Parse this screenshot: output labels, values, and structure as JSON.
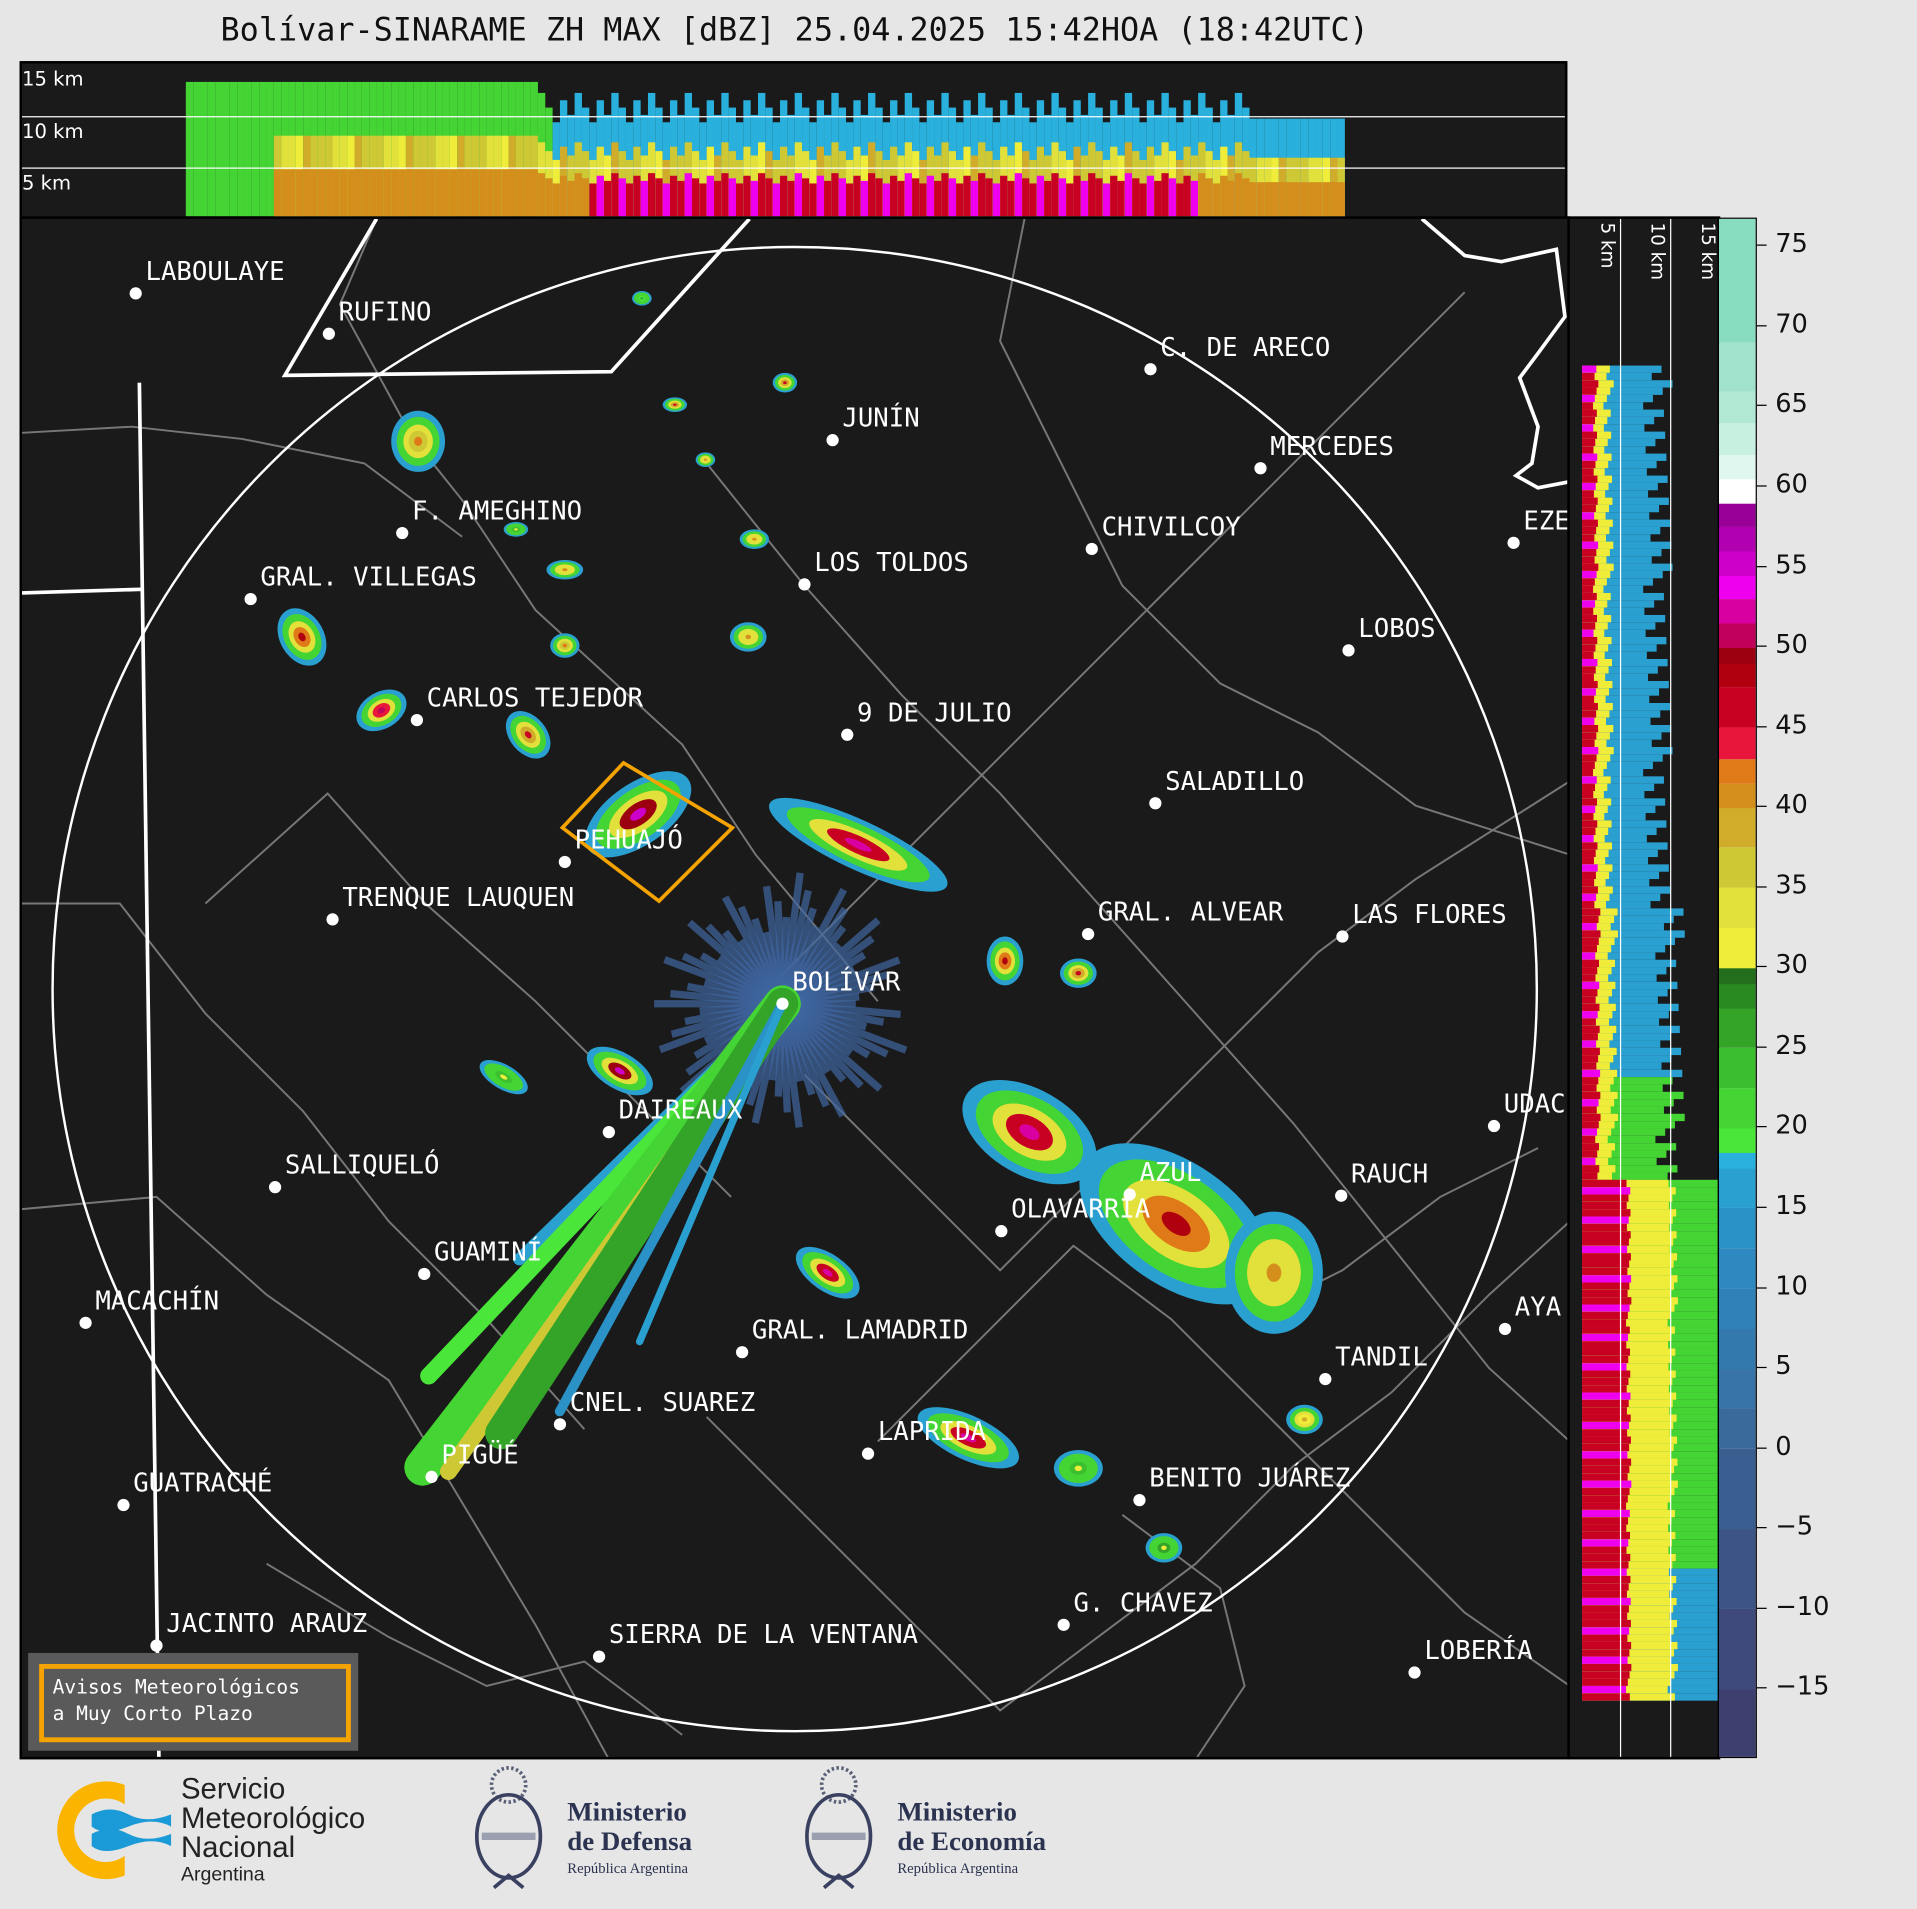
{
  "title": "Bolívar-SINARAME ZH MAX [dBZ] 25.04.2025 15:42HOA (18:42UTC)",
  "top_panel": {
    "height_labels": [
      "15 km",
      "10 km",
      "5 km"
    ]
  },
  "side_panel": {
    "height_labels": [
      "5 km",
      "10 km",
      "15 km"
    ]
  },
  "colorbar": {
    "unit": "dBZ",
    "ticks": [
      "75",
      "70",
      "65",
      "60",
      "55",
      "50",
      "45",
      "40",
      "35",
      "30",
      "25",
      "20",
      "15",
      "10",
      "5",
      "0",
      "−5",
      "−10",
      "−15"
    ],
    "range": [
      -19.4,
      76.7
    ],
    "bands": [
      [
        -20,
        "#3d3f6e"
      ],
      [
        -15,
        "#3e4a7c"
      ],
      [
        -10,
        "#3d5586"
      ],
      [
        -5,
        "#3b5e90"
      ],
      [
        0,
        "#3a6a9c"
      ],
      [
        2.5,
        "#3874a8"
      ],
      [
        5,
        "#3479ae"
      ],
      [
        7.5,
        "#2f81b8"
      ],
      [
        10,
        "#2d89c0"
      ],
      [
        12.5,
        "#2a92c6"
      ],
      [
        15,
        "#2aa0d0"
      ],
      [
        17.5,
        "#29b0dc"
      ],
      [
        18.5,
        "#4ae63a"
      ],
      [
        20,
        "#44d434"
      ],
      [
        22.5,
        "#3cbf2e"
      ],
      [
        25,
        "#33a428"
      ],
      [
        27.5,
        "#2a8a22"
      ],
      [
        29,
        "#226e1c"
      ],
      [
        30,
        "#f0ec3a"
      ],
      [
        32.5,
        "#e2e03a"
      ],
      [
        35,
        "#cfc835"
      ],
      [
        37.5,
        "#d0ac2a"
      ],
      [
        40,
        "#d48e1c"
      ],
      [
        41.5,
        "#e07a18"
      ],
      [
        43,
        "#e8163a"
      ],
      [
        45,
        "#c80022"
      ],
      [
        47.5,
        "#b00010"
      ],
      [
        49,
        "#9c0010"
      ],
      [
        50,
        "#c0005a"
      ],
      [
        51.5,
        "#d800a0"
      ],
      [
        53,
        "#ee00ee"
      ],
      [
        54.5,
        "#cc00c8"
      ],
      [
        56,
        "#b000b0"
      ],
      [
        57.5,
        "#980098"
      ],
      [
        59,
        "#ffffff"
      ],
      [
        60.5,
        "#dff7ee"
      ],
      [
        62,
        "#c8f0e0"
      ],
      [
        64,
        "#b0e8d4"
      ],
      [
        66,
        "#a0e2cc"
      ],
      [
        69,
        "#88dcc0"
      ]
    ]
  },
  "cities": [
    "LABOULAYE",
    "RUFINO",
    "C. DE ARECO",
    "JUNÍN",
    "MERCEDES",
    "F. AMEGHINO",
    "CHIVILCOY",
    "EZE",
    "LOS TOLDOS",
    "GRAL. VILLEGAS",
    "LOBOS",
    "CARLOS TEJEDOR",
    "9 DE JULIO",
    "SALADILLO",
    "PEHUAJÓ",
    "TRENQUE LAUQUEN",
    "GRAL. ALVEAR",
    "LAS FLORES",
    "BOLÍVAR",
    "DAIREAUX",
    "UDAC",
    "SALLIQUELÓ",
    "AZUL",
    "RAUCH",
    "OLAVARRÍA",
    "GUAMINÍ",
    "MACACHÍN",
    "AYA",
    "GRAL. LAMADRID",
    "TANDIL",
    "CNEL. SUAREZ",
    "LAPRIDA",
    "PIGÜÉ",
    "GUATRACHÉ",
    "BENITO JUÁREZ",
    "G. CHAVEZ",
    "JACINTO ARAUZ",
    "SIERRA DE LA VENTANA",
    "LOBERÍA"
  ],
  "warning_box": {
    "line1": "Avisos Meteorológicos",
    "line2": "a Muy Corto Plazo",
    "color": "#f5a300"
  },
  "alert_polygon_color": "#f5a300",
  "logos": {
    "smn": {
      "line1": "Servicio",
      "line2": "Meteorológico",
      "line3": "Nacional",
      "line4": "Argentina"
    },
    "defensa": {
      "line1": "Ministerio",
      "line2": "de Defensa",
      "line3": "República Argentina"
    },
    "economia": {
      "line1": "Ministerio",
      "line2": "de Economía",
      "line3": "República Argentina"
    }
  }
}
